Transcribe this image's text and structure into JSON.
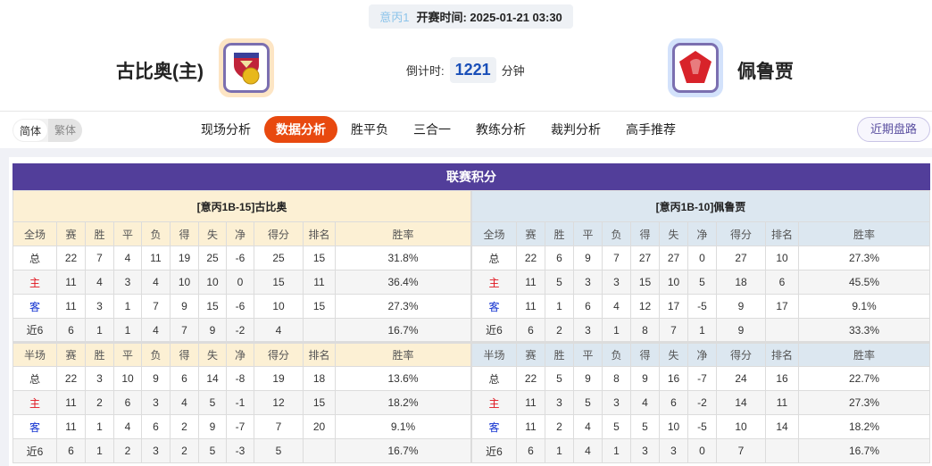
{
  "match": {
    "league": "意丙1",
    "kickoff_label": "开赛时间:",
    "kickoff": "2025-01-21 03:30",
    "home_team": "古比奥(主)",
    "away_team": "佩鲁贾",
    "countdown_label": "倒计时:",
    "countdown_value": "1221",
    "countdown_unit": "分钟"
  },
  "lang": {
    "simplified": "简体",
    "traditional": "繁体"
  },
  "tabs": [
    {
      "label": "现场分析"
    },
    {
      "label": "数据分析",
      "active": true
    },
    {
      "label": "胜平负"
    },
    {
      "label": "三合一"
    },
    {
      "label": "教练分析"
    },
    {
      "label": "裁判分析"
    },
    {
      "label": "高手推荐"
    }
  ],
  "recent_button": "近期盘路",
  "section_title": "联赛积分",
  "colors": {
    "accent": "#e8490f",
    "header": "#523e9a",
    "home": "#e0141e",
    "away": "#1030d0"
  },
  "tables": [
    {
      "team": "[意丙1B-15]古比奥",
      "full_headers": [
        "全场",
        "赛",
        "胜",
        "平",
        "负",
        "得",
        "失",
        "净",
        "得分",
        "排名",
        "胜率"
      ],
      "full_rows": [
        [
          "总",
          "22",
          "7",
          "4",
          "11",
          "19",
          "25",
          "-6",
          "25",
          "15",
          "31.8%"
        ],
        [
          "主",
          "11",
          "4",
          "3",
          "4",
          "10",
          "10",
          "0",
          "15",
          "11",
          "36.4%"
        ],
        [
          "客",
          "11",
          "3",
          "1",
          "7",
          "9",
          "15",
          "-6",
          "10",
          "15",
          "27.3%"
        ],
        [
          "近6",
          "6",
          "1",
          "1",
          "4",
          "7",
          "9",
          "-2",
          "4",
          "",
          "16.7%"
        ]
      ],
      "half_headers": [
        "半场",
        "赛",
        "胜",
        "平",
        "负",
        "得",
        "失",
        "净",
        "得分",
        "排名",
        "胜率"
      ],
      "half_rows": [
        [
          "总",
          "22",
          "3",
          "10",
          "9",
          "6",
          "14",
          "-8",
          "19",
          "18",
          "13.6%"
        ],
        [
          "主",
          "11",
          "2",
          "6",
          "3",
          "4",
          "5",
          "-1",
          "12",
          "15",
          "18.2%"
        ],
        [
          "客",
          "11",
          "1",
          "4",
          "6",
          "2",
          "9",
          "-7",
          "7",
          "20",
          "9.1%"
        ],
        [
          "近6",
          "6",
          "1",
          "2",
          "3",
          "2",
          "5",
          "-3",
          "5",
          "",
          "16.7%"
        ]
      ]
    },
    {
      "team": "[意丙1B-10]佩鲁贾",
      "full_headers": [
        "全场",
        "赛",
        "胜",
        "平",
        "负",
        "得",
        "失",
        "净",
        "得分",
        "排名",
        "胜率"
      ],
      "full_rows": [
        [
          "总",
          "22",
          "6",
          "9",
          "7",
          "27",
          "27",
          "0",
          "27",
          "10",
          "27.3%"
        ],
        [
          "主",
          "11",
          "5",
          "3",
          "3",
          "15",
          "10",
          "5",
          "18",
          "6",
          "45.5%"
        ],
        [
          "客",
          "11",
          "1",
          "6",
          "4",
          "12",
          "17",
          "-5",
          "9",
          "17",
          "9.1%"
        ],
        [
          "近6",
          "6",
          "2",
          "3",
          "1",
          "8",
          "7",
          "1",
          "9",
          "",
          "33.3%"
        ]
      ],
      "half_headers": [
        "半场",
        "赛",
        "胜",
        "平",
        "负",
        "得",
        "失",
        "净",
        "得分",
        "排名",
        "胜率"
      ],
      "half_rows": [
        [
          "总",
          "22",
          "5",
          "9",
          "8",
          "9",
          "16",
          "-7",
          "24",
          "16",
          "22.7%"
        ],
        [
          "主",
          "11",
          "3",
          "5",
          "3",
          "4",
          "6",
          "-2",
          "14",
          "11",
          "27.3%"
        ],
        [
          "客",
          "11",
          "2",
          "4",
          "5",
          "5",
          "10",
          "-5",
          "10",
          "14",
          "18.2%"
        ],
        [
          "近6",
          "6",
          "1",
          "4",
          "1",
          "3",
          "3",
          "0",
          "7",
          "",
          "16.7%"
        ]
      ]
    }
  ]
}
